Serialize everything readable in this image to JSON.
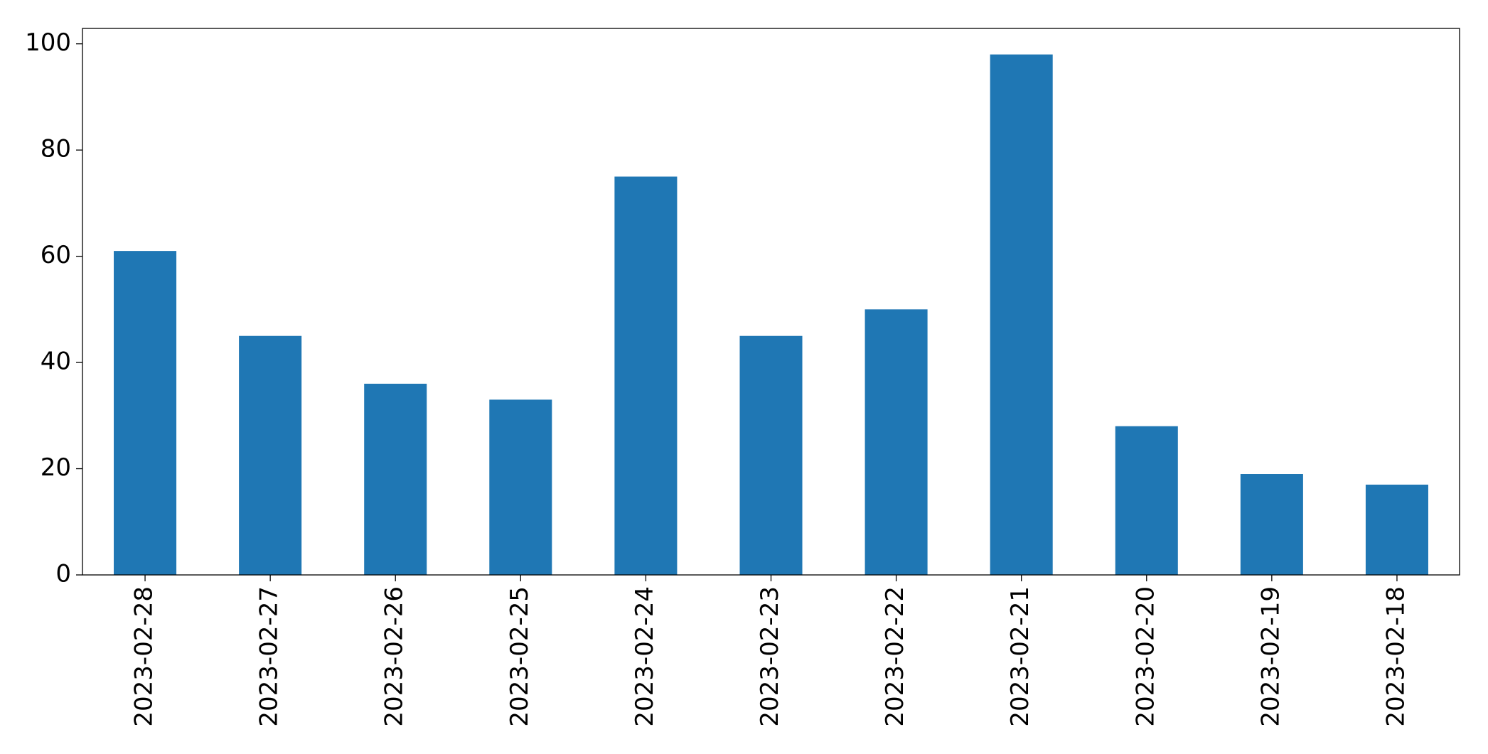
{
  "chart_data": {
    "type": "bar",
    "categories": [
      "2023-02-28",
      "2023-02-27",
      "2023-02-26",
      "2023-02-25",
      "2023-02-24",
      "2023-02-23",
      "2023-02-22",
      "2023-02-21",
      "2023-02-20",
      "2023-02-19",
      "2023-02-18"
    ],
    "values": [
      61,
      45,
      36,
      33,
      75,
      45,
      50,
      98,
      28,
      19,
      17
    ],
    "color": "#1f77b4",
    "ylim": [
      0,
      102.9
    ],
    "yticks": [
      0,
      20,
      40,
      60,
      80,
      100
    ],
    "grid": false
  }
}
